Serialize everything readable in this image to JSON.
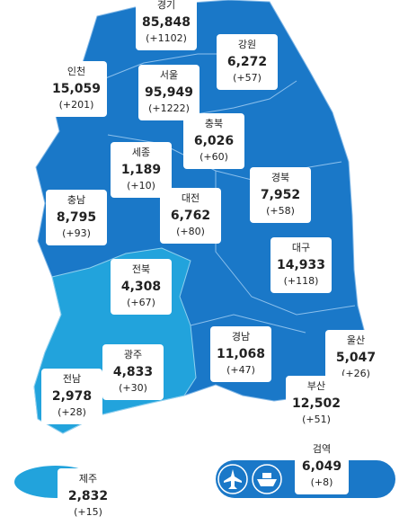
{
  "regions": [
    {
      "name": "경기",
      "total": "85,848",
      "change": "(+1102)"
    },
    {
      "name": "강원",
      "total": "6,272",
      "change": "(+57)"
    },
    {
      "name": "인천",
      "total": "15,059",
      "change": "(+201)"
    },
    {
      "name": "서울",
      "total": "95,949",
      "change": "(+1222)"
    },
    {
      "name": "충북",
      "total": "6,026",
      "change": "(+60)"
    },
    {
      "name": "세종",
      "total": "1,189",
      "change": "(+10)"
    },
    {
      "name": "경북",
      "total": "7,952",
      "change": "(+58)"
    },
    {
      "name": "충남",
      "total": "8,795",
      "change": "(+93)"
    },
    {
      "name": "대전",
      "total": "6,762",
      "change": "(+80)"
    },
    {
      "name": "대구",
      "total": "14,933",
      "change": "(+118)"
    },
    {
      "name": "전북",
      "total": "4,308",
      "change": "(+67)"
    },
    {
      "name": "경남",
      "total": "11,068",
      "change": "(+47)"
    },
    {
      "name": "울산",
      "total": "5,047",
      "change": "(+26)"
    },
    {
      "name": "광주",
      "total": "4,833",
      "change": "(+30)"
    },
    {
      "name": "전남",
      "total": "2,978",
      "change": "(+28)"
    },
    {
      "name": "부산",
      "total": "12,502",
      "change": "(+51)"
    },
    {
      "name": "제주",
      "total": "2,832",
      "change": "(+15)"
    }
  ],
  "quarantine": {
    "name": "검역",
    "total": "6,049",
    "change": "(+8)"
  }
}
